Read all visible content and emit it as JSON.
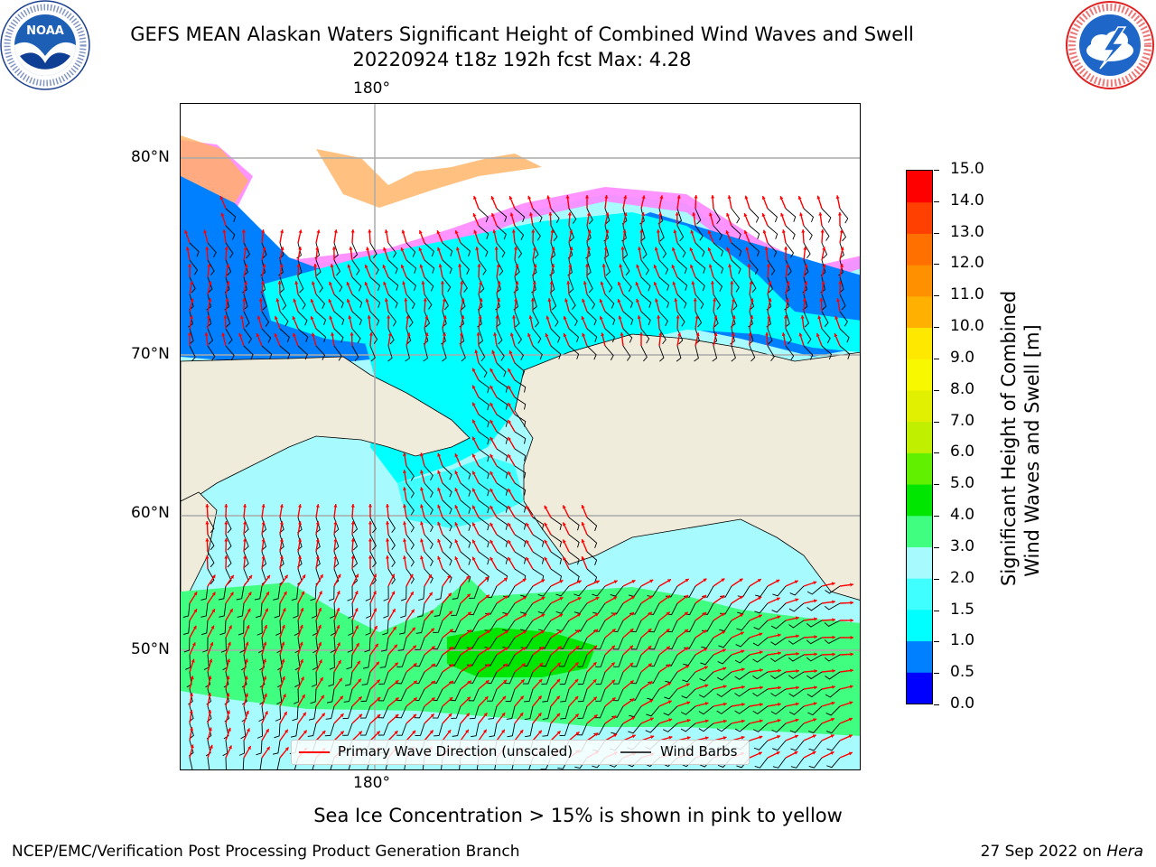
{
  "title_line1": "GEFS MEAN Alaskan Waters Significant Height of Combined Wind Waves and Swell",
  "title_line2": "20220924 t18z 192h fcst   Max: 4.28",
  "logos": {
    "left": {
      "icon": "noaa-logo",
      "ring_text": "NATIONAL OCEANIC AND ATMOSPHERIC ADMINISTRATION · U.S. DEPARTMENT OF COMMERCE",
      "center_text": "NOAA"
    },
    "right": {
      "icon": "nws-logo",
      "ring_text": "NATIONAL WEATHER SERVICE"
    }
  },
  "map": {
    "lon_labels": [
      "180°",
      "180°"
    ],
    "lat_labels": [
      "80°N",
      "70°N",
      "60°N",
      "50°N"
    ],
    "legend": {
      "wave": "Primary Wave Direction (unscaled)",
      "wind": "Wind Barbs"
    },
    "colors": {
      "land": "#efecdc",
      "ice_zone": "#ffffff",
      "arrow": "#ff0000",
      "barb": "#000000"
    }
  },
  "colorbar": {
    "label": "Significant Height of Combined Wind Waves and Swell [m]",
    "label_line1": "Significant Height of Combined",
    "label_line2": "Wind Waves and Swell [m]",
    "ticks": [
      "15.0",
      "14.0",
      "13.0",
      "12.0",
      "11.0",
      "10.0",
      "9.0",
      "8.0",
      "7.0",
      "6.0",
      "5.0",
      "4.0",
      "3.0",
      "2.0",
      "1.5",
      "1.0",
      "0.5",
      "0.0"
    ],
    "bands": [
      {
        "from": 0.0,
        "to": 0.5,
        "color": "#0000ff"
      },
      {
        "from": 0.5,
        "to": 1.0,
        "color": "#0080ff"
      },
      {
        "from": 1.0,
        "to": 1.5,
        "color": "#00ffff"
      },
      {
        "from": 1.5,
        "to": 2.0,
        "color": "#40ffff"
      },
      {
        "from": 2.0,
        "to": 3.0,
        "color": "#a7fbff"
      },
      {
        "from": 3.0,
        "to": 4.0,
        "color": "#40ff80"
      },
      {
        "from": 4.0,
        "to": 5.0,
        "color": "#00e600"
      },
      {
        "from": 5.0,
        "to": 6.0,
        "color": "#60f000"
      },
      {
        "from": 6.0,
        "to": 7.0,
        "color": "#c0f000"
      },
      {
        "from": 7.0,
        "to": 8.0,
        "color": "#e0f000"
      },
      {
        "from": 8.0,
        "to": 9.0,
        "color": "#f8f800"
      },
      {
        "from": 9.0,
        "to": 10.0,
        "color": "#ffe800"
      },
      {
        "from": 10.0,
        "to": 11.0,
        "color": "#ffb000"
      },
      {
        "from": 11.0,
        "to": 12.0,
        "color": "#ff9000"
      },
      {
        "from": 12.0,
        "to": 13.0,
        "color": "#ff7000"
      },
      {
        "from": 13.0,
        "to": 14.0,
        "color": "#ff4000"
      },
      {
        "from": 14.0,
        "to": 15.0,
        "color": "#ff0000"
      }
    ]
  },
  "subtitle": "Sea Ice Concentration > 15% is shown in pink to yellow",
  "credit": "NCEP/EMC/Verification Post Processing Product Generation Branch",
  "date_prefix": "27 Sep 2022 on ",
  "date_host": "Hera"
}
